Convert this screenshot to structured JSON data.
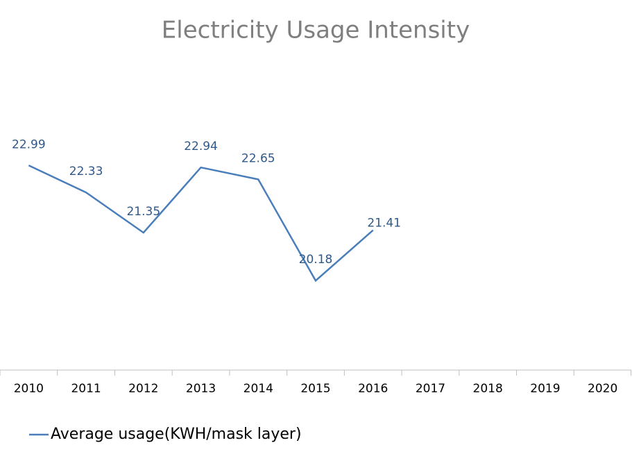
{
  "chart_data": {
    "type": "line",
    "title": "Electricity Usage Intensity",
    "categories": [
      "2010",
      "2011",
      "2012",
      "2013",
      "2014",
      "2015",
      "2016",
      "2017",
      "2018",
      "2019",
      "2020"
    ],
    "series": [
      {
        "name": "Average usage(KWH/mask layer)",
        "color": "#4a7ebb",
        "values": [
          22.99,
          22.33,
          21.35,
          22.94,
          22.65,
          20.18,
          21.41,
          null,
          null,
          null,
          null
        ]
      }
    ],
    "ylim": [
      18,
      24
    ],
    "grid": false,
    "legend": "bottom"
  }
}
